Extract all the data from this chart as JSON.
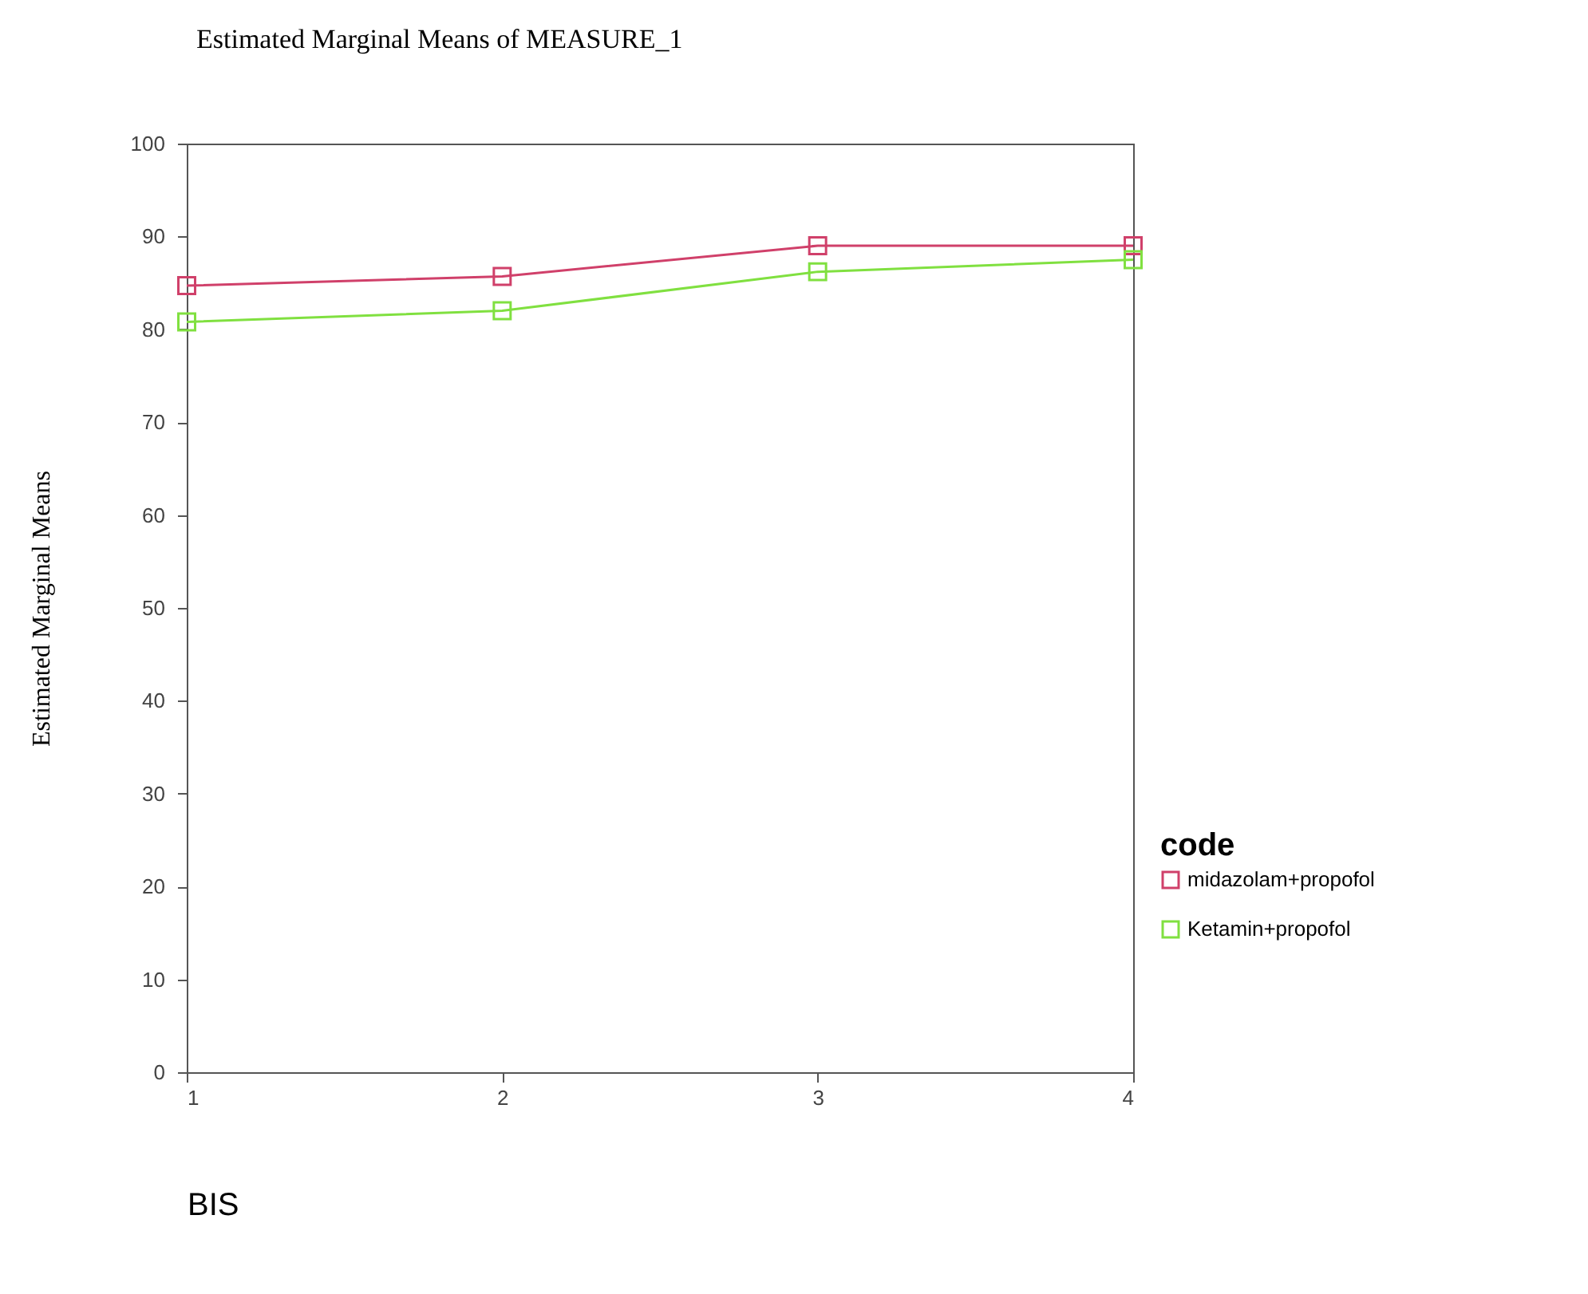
{
  "chart_data": {
    "type": "line",
    "title": "Estimated Marginal Means of MEASURE_1",
    "xlabel": "BIS",
    "ylabel": "Estimated Marginal Means",
    "legend_title": "code",
    "x": [
      1,
      2,
      3,
      4
    ],
    "series": [
      {
        "name": "midazolam+propofol",
        "color": "#d0406a",
        "values": [
          84.7,
          85.7,
          89,
          89
        ]
      },
      {
        "name": "Ketamin+propofol",
        "color": "#80e040",
        "values": [
          80.8,
          82,
          86.2,
          87.5
        ]
      }
    ],
    "xlim": [
      1,
      4
    ],
    "xticks": [
      1,
      2,
      3,
      4
    ],
    "ylim": [
      0,
      100
    ],
    "yticks": [
      0,
      10,
      20,
      30,
      40,
      50,
      60,
      70,
      80,
      90,
      100
    ],
    "grid": false,
    "legend": "right",
    "marker": "square",
    "line_style": "solid"
  }
}
